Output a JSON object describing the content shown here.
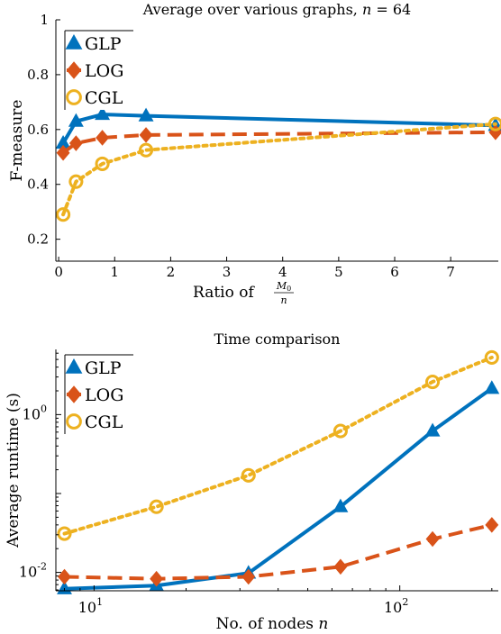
{
  "chart_data": [
    {
      "type": "line",
      "title": "Average over various graphs, n = 64",
      "title_parts": [
        "Average over various graphs, ",
        "n",
        " = 64"
      ],
      "xlabel": "Ratio of M₀/n",
      "xlabel_parts": [
        "Ratio of ",
        "M",
        "0",
        "n"
      ],
      "ylabel": "F-measure",
      "xlim": [
        -0.05,
        7.85
      ],
      "ylim": [
        0.12,
        1.0
      ],
      "xticks": [
        0,
        1,
        2,
        3,
        4,
        5,
        6,
        7
      ],
      "yticks": [
        0.2,
        0.4,
        0.6,
        0.8,
        1
      ],
      "ytick_labels": [
        "0.2",
        "0.4",
        "0.6",
        "0.8",
        "1"
      ],
      "xscale": "linear",
      "yscale": "linear",
      "grid": false,
      "legend": "top-left",
      "series": [
        {
          "name": "GLP",
          "color": "#0072BD",
          "marker": "triangle",
          "line": "solid",
          "x": [
            0.08,
            0.31,
            0.78,
            1.56,
            7.8
          ],
          "y": [
            0.55,
            0.63,
            0.655,
            0.65,
            0.615
          ]
        },
        {
          "name": "LOG",
          "color": "#D95319",
          "marker": "diamond",
          "line": "dashed",
          "x": [
            0.08,
            0.31,
            0.78,
            1.56,
            7.8
          ],
          "y": [
            0.515,
            0.55,
            0.57,
            0.58,
            0.59
          ]
        },
        {
          "name": "CGL",
          "color": "#EDB120",
          "marker": "circle",
          "line": "dotted",
          "x": [
            0.08,
            0.31,
            0.78,
            1.56,
            7.8
          ],
          "y": [
            0.29,
            0.41,
            0.475,
            0.525,
            0.62
          ]
        }
      ]
    },
    {
      "type": "line",
      "title": "Time comparison",
      "xlabel": "No. of nodes n",
      "xlabel_parts": [
        "No. of nodes ",
        "n"
      ],
      "ylabel": "Average runtime (s)",
      "xscale": "log",
      "yscale": "log",
      "xlim": [
        7.5,
        210
      ],
      "ylim": [
        0.00585,
        6.7
      ],
      "xtick_labels": [
        {
          "value": 10,
          "base": "10",
          "exp": "1"
        },
        {
          "value": 100,
          "base": "10",
          "exp": "2"
        }
      ],
      "ytick_labels": [
        {
          "value": 0.01,
          "base": "10",
          "exp": "-2"
        },
        {
          "value": 1,
          "base": "10",
          "exp": "0"
        }
      ],
      "grid": false,
      "legend": "top-left",
      "series": [
        {
          "name": "GLP",
          "color": "#0072BD",
          "marker": "triangle",
          "line": "solid",
          "x": [
            8,
            16,
            32,
            64,
            128,
            200
          ],
          "y": [
            0.0062,
            0.0068,
            0.0098,
            0.068,
            0.62,
            2.15
          ]
        },
        {
          "name": "LOG",
          "color": "#D95319",
          "marker": "diamond",
          "line": "dashed",
          "x": [
            8,
            16,
            32,
            64,
            128,
            200
          ],
          "y": [
            0.0088,
            0.0083,
            0.0088,
            0.0118,
            0.0265,
            0.04
          ]
        },
        {
          "name": "CGL",
          "color": "#EDB120",
          "marker": "circle",
          "line": "dotted",
          "x": [
            8,
            16,
            32,
            64,
            128,
            200
          ],
          "y": [
            0.031,
            0.068,
            0.17,
            0.62,
            2.6,
            5.3
          ]
        }
      ]
    }
  ]
}
